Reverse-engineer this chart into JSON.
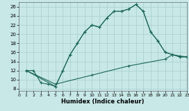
{
  "bg_color": "#c8e8e8",
  "grid_color": "#a8cccc",
  "line_color": "#1a6655",
  "xlim": [
    0,
    23
  ],
  "ylim": [
    7.5,
    27
  ],
  "xticks": [
    0,
    1,
    2,
    3,
    4,
    5,
    6,
    7,
    8,
    9,
    10,
    11,
    12,
    13,
    14,
    15,
    16,
    17,
    18,
    19,
    20,
    21,
    22,
    23
  ],
  "yticks": [
    8,
    10,
    12,
    14,
    16,
    18,
    20,
    22,
    24,
    26
  ],
  "xlabel": "Humidex (Indice chaleur)",
  "line1_x": [
    1,
    2,
    3,
    4,
    5,
    6,
    7,
    8,
    9,
    10,
    11,
    12,
    13,
    14,
    15,
    16,
    17,
    18,
    19,
    20,
    21,
    22,
    23
  ],
  "line1_y": [
    12,
    12,
    9.3,
    9.0,
    8.5,
    12.0,
    15.5,
    18.0,
    20.5,
    22.0,
    21.5,
    23.5,
    25.0,
    25.0,
    25.5,
    26.5,
    25.0,
    20.5,
    18.5,
    16.0,
    15.5,
    15.0,
    15.0
  ],
  "line2_x": [
    1,
    5,
    6,
    7,
    8,
    9,
    10,
    11,
    12,
    13,
    14,
    15,
    16,
    17,
    18,
    19,
    20,
    21,
    22,
    23
  ],
  "line2_y": [
    12,
    8.5,
    12.0,
    15.5,
    18.0,
    20.5,
    22.0,
    21.5,
    23.5,
    25.0,
    25.0,
    25.5,
    26.5,
    25.0,
    20.5,
    18.5,
    16.0,
    15.5,
    15.0,
    15.0
  ],
  "line3_x": [
    1,
    5,
    10,
    15,
    20,
    21,
    22,
    23
  ],
  "line3_y": [
    12,
    9.0,
    11.0,
    13.0,
    14.5,
    15.5,
    15.2,
    15.0
  ]
}
